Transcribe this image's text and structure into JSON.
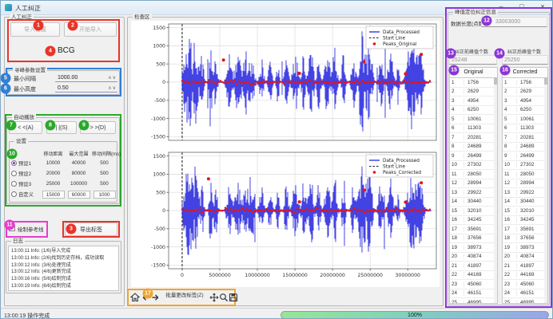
{
  "window": {
    "title": "人工纠正"
  },
  "icons": {
    "minimize": "–",
    "maximize": "□",
    "close": "×",
    "spin_up": "∧",
    "spin_down": "∨"
  },
  "left_panel": {
    "group_title": "人工纠正",
    "import_settings_button": "导入设置",
    "start_import_button": "开始导入",
    "signal_type_label": "BCG",
    "export_labels_button": "导出标签",
    "reference_line_checkbox": "绘制参考线",
    "peak_params": {
      "group_title": "寻峰参数设置",
      "min_interval_label": "最小间隔",
      "min_interval_value": "1000.00",
      "min_height_label": "最小高度",
      "min_height_value": "0.50"
    },
    "autoplay": {
      "group_title": "自动播放",
      "back_button": "< <(A)",
      "pause_button": "| |(S)",
      "forward_button": "> >(D)",
      "settings": {
        "group_title": "设置",
        "columns": [
          "移动距离",
          "最大范围",
          "移动间隔(ms)"
        ],
        "rows": [
          {
            "label": "预设1",
            "selected": true,
            "editable": false,
            "values": [
              "10000",
              "40000",
              "500"
            ]
          },
          {
            "label": "预设2",
            "selected": false,
            "editable": false,
            "values": [
              "20000",
              "80000",
              "500"
            ]
          },
          {
            "label": "预设3",
            "selected": false,
            "editable": false,
            "values": [
              "25000",
              "100000",
              "500"
            ]
          },
          {
            "label": "自定义",
            "selected": false,
            "editable": true,
            "values": [
              "15000",
              "60000",
              "1000"
            ]
          }
        ]
      }
    },
    "log": {
      "group_title": "日志",
      "lines": [
        "13:00:11 Info: (1/6)导入完成",
        "13:00:11 Info: (2/6)找到历史存档，成功读取",
        "13:00:12 Info: (3/6)处理完成",
        "13:00:12 Info: (4/6)更新完成",
        "13:00:16 Info: (5/6)绘制完成",
        "13:00:19 Info: (6/6)绘制完成"
      ]
    }
  },
  "center_panel": {
    "group_title": "检查区",
    "toolbar": {
      "batch_edit_button": "批量更改标签(Z)"
    }
  },
  "chart_data": [
    {
      "type": "line",
      "legend": [
        "Data_Processed",
        "Start Line",
        "Peaks_Original"
      ],
      "legend_position": "upper right",
      "colors": {
        "signal": "#1414dc",
        "start_line": "#1a1a1a",
        "peaks": "#e81414",
        "grid": "#dcdcdc"
      },
      "y_ticks": [
        1500,
        1000,
        500,
        0,
        -500,
        -1000,
        -1500
      ],
      "x_ticks": [
        0,
        5000000,
        10000000,
        15000000,
        20000000,
        25000000,
        30000000
      ],
      "show_x_tick_labels": false,
      "xlim": [
        -1800000,
        33800000
      ],
      "ylim": [
        -1600,
        1600
      ],
      "data_range": [
        0,
        33003000
      ],
      "start_line_x": 0,
      "outlier_peaks": [
        {
          "x": 5500000,
          "y": 610
        },
        {
          "x": 15600000,
          "y": 240
        },
        {
          "x": 24200000,
          "y": 560
        },
        {
          "x": 25100000,
          "y": 1130
        },
        {
          "x": 29700000,
          "y": 230
        },
        {
          "x": 31800000,
          "y": 760
        }
      ]
    },
    {
      "type": "line",
      "legend": [
        "Data_Processed",
        "Start Line",
        "Peaks_Corrected"
      ],
      "legend_position": "upper right",
      "colors": {
        "signal": "#1414dc",
        "start_line": "#1a1a1a",
        "peaks": "#e81414",
        "grid": "#dcdcdc"
      },
      "y_ticks": [
        1500,
        1000,
        500,
        0,
        -500,
        -1000,
        -1500
      ],
      "x_ticks": [
        0,
        5000000,
        10000000,
        15000000,
        20000000,
        25000000,
        30000000
      ],
      "show_x_tick_labels": true,
      "xlim": [
        -1800000,
        33800000
      ],
      "ylim": [
        -1600,
        1600
      ],
      "data_range": [
        0,
        33003000
      ],
      "start_line_x": 0,
      "outlier_peaks": [
        {
          "x": 3500000,
          "y": 870
        },
        {
          "x": 15600000,
          "y": 240
        },
        {
          "x": 24200000,
          "y": 560
        },
        {
          "x": 25100000,
          "y": 1130
        },
        {
          "x": 29700000,
          "y": 230
        },
        {
          "x": 31800000,
          "y": 760
        }
      ]
    }
  ],
  "right_panel": {
    "group_title": "峰值定位纠正信息",
    "data_length_label": "数据长度(点数)",
    "data_length_value": "33003000",
    "before_label": "纠正前峰值个数",
    "before_value": "25248",
    "after_label": "纠正后峰值个数",
    "after_value": "25250",
    "original_table": {
      "header": "Original",
      "values": [
        1756,
        2629,
        4954,
        6250,
        10061,
        11303,
        20281,
        24689,
        26499,
        27302,
        28050,
        28994,
        29922,
        30440,
        32010,
        34245,
        35691,
        37656,
        38973,
        40874,
        41897,
        44169,
        45060,
        46151,
        46995,
        47878,
        49054
      ]
    },
    "corrected_table": {
      "header": "Corrected",
      "values": [
        1756,
        2629,
        4954,
        6250,
        10061,
        11303,
        20281,
        24689,
        26499,
        27302,
        28050,
        28994,
        29922,
        30440,
        32010,
        34245,
        35691,
        37656,
        38973,
        40874,
        41897,
        44169,
        45060,
        46151,
        46995,
        47878,
        49054
      ]
    }
  },
  "status_bar": {
    "message": "13:00:19 操作完成",
    "progress": "100%"
  },
  "annotations": {
    "markers": [
      {
        "n": "1",
        "color": "#e8342a",
        "x": 47,
        "y": 31
      },
      {
        "n": "2",
        "color": "#e8342a",
        "x": 90,
        "y": 31
      },
      {
        "n": "4",
        "color": "#e8342a",
        "x": 62,
        "y": 63
      },
      {
        "n": "5",
        "color": "#2f7fd6",
        "x": 6,
        "y": 97
      },
      {
        "n": "6",
        "color": "#2f7fd6",
        "x": 6,
        "y": 110
      },
      {
        "n": "7",
        "color": "#2ba82b",
        "x": 13,
        "y": 156
      },
      {
        "n": "8",
        "color": "#2ba82b",
        "x": 62,
        "y": 156
      },
      {
        "n": "9",
        "color": "#2ba82b",
        "x": 104,
        "y": 156
      },
      {
        "n": "10",
        "color": "#2ba82b",
        "x": 14,
        "y": 192
      },
      {
        "n": "11",
        "color": "#e83ad0",
        "x": 11,
        "y": 281
      },
      {
        "n": "3",
        "color": "#e8342a",
        "x": 88,
        "y": 286
      },
      {
        "n": "12",
        "color": "#8a35d6",
        "x": 608,
        "y": 25
      },
      {
        "n": "13",
        "color": "#8a35d6",
        "x": 563,
        "y": 66
      },
      {
        "n": "14",
        "color": "#8a35d6",
        "x": 624,
        "y": 66
      },
      {
        "n": "15",
        "color": "#8a35d6",
        "x": 567,
        "y": 87
      },
      {
        "n": "16",
        "color": "#8a35d6",
        "x": 631,
        "y": 87
      },
      {
        "n": "17",
        "color": "#f0a430",
        "x": 184,
        "y": 367
      }
    ],
    "boxes": [
      {
        "name": "import-box",
        "color": "#e8342a"
      },
      {
        "name": "peak-params-box",
        "color": "#2f7fd6"
      },
      {
        "name": "autoplay-box",
        "color": "#2ba82b"
      },
      {
        "name": "reference-box",
        "color": "#e83ad0"
      },
      {
        "name": "export-box",
        "color": "#e8342a"
      },
      {
        "name": "toolbar-box",
        "color": "#f0a430"
      },
      {
        "name": "right-panel-box",
        "color": "#8a35d6"
      }
    ]
  }
}
